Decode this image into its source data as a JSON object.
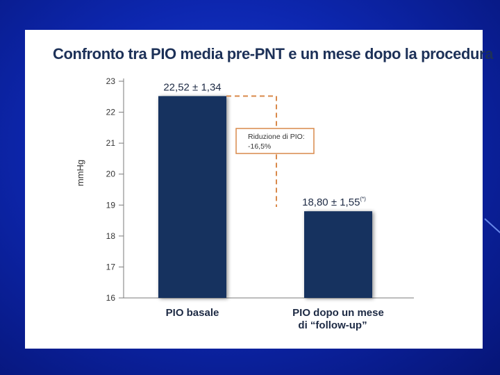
{
  "colors": {
    "background": "#0d27b0",
    "panel": "#ffffff",
    "bar": "#13335f",
    "annotation": "#d9894a",
    "title": "#1d3158"
  },
  "chart_data": {
    "type": "bar",
    "title": "Confronto tra PIO media pre-PNT e un mese dopo la procedura",
    "xlabel": "",
    "ylabel": "mmHg",
    "ylim": [
      16,
      23
    ],
    "yticks": [
      "16",
      "17",
      "18",
      "19",
      "20",
      "21",
      "22",
      "23"
    ],
    "categories": [
      [
        "PIO basale"
      ],
      [
        "PIO dopo un mese",
        "di “follow-up”"
      ]
    ],
    "values": [
      22.52,
      18.8
    ],
    "value_labels": [
      "22,52 ± 1,34",
      "18,80 ± 1,55"
    ],
    "value_label_sup": [
      "",
      "(*)"
    ],
    "grid": false,
    "annotation": {
      "lines": [
        "Riduzione di PIO:",
        "-16,5%"
      ]
    }
  }
}
